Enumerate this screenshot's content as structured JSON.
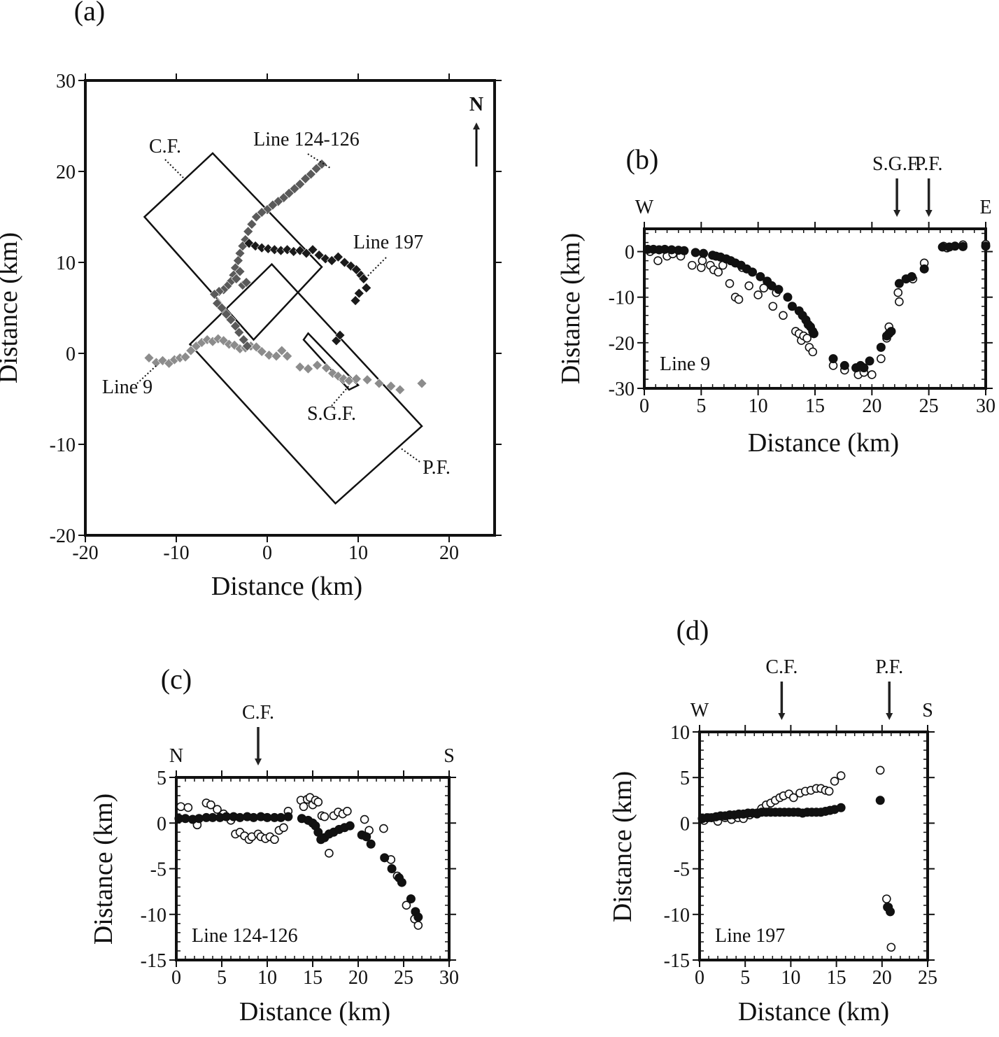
{
  "chart_data": [
    {
      "panel": "(a)",
      "type": "scatter",
      "xlabel": "Distance (km)",
      "ylabel": "Distance (km)",
      "xlim": [
        -20,
        25
      ],
      "ylim": [
        -20,
        30
      ],
      "xticks": [
        "-20",
        "-10",
        "0",
        "10",
        "20"
      ],
      "yticks": [
        "30",
        "20",
        "10",
        "0",
        "-10",
        "-20"
      ],
      "north_label": "N",
      "boxes": [
        {
          "label": "C.F.",
          "corners": [
            [
              -6,
              22
            ],
            [
              6,
              9.5
            ],
            [
              -1.5,
              1.5
            ],
            [
              -13.5,
              15
            ]
          ]
        },
        {
          "label": "P.F.",
          "corners": [
            [
              0.5,
              9.8
            ],
            [
              17,
              -8
            ],
            [
              7.5,
              -16.5
            ],
            [
              -8.5,
              1
            ]
          ]
        },
        {
          "label": "S.G.F.",
          "corners": [
            [
              4.5,
              2.2
            ],
            [
              10,
              -3.5
            ],
            [
              9,
              -4
            ],
            [
              4,
              1.5
            ]
          ]
        }
      ],
      "series": [
        {
          "name": "Line 9",
          "color": "#8c8c8c",
          "x": [
            -13,
            -12.2,
            -11.5,
            -10.8,
            -10.2,
            -9.6,
            -9,
            -8.4,
            -7.8,
            -7.2,
            -6.6,
            -6,
            -5.4,
            -4.8,
            -4.2,
            -3.6,
            -3,
            -2.4,
            -1.8,
            -1.2,
            -0.6,
            0.2,
            1,
            1.6,
            2.2,
            3.6,
            4.5,
            5.5,
            6.5,
            7.2,
            7.8,
            8.4,
            9,
            9.8,
            11,
            12.3,
            13.6,
            14.6,
            17
          ],
          "y": [
            -0.5,
            -1,
            -0.8,
            -1.1,
            -0.7,
            -0.5,
            -0.4,
            0.3,
            0.8,
            1.2,
            1.5,
            1.3,
            1.6,
            1.4,
            1.0,
            0.9,
            0.5,
            0.6,
            0.8,
            0.7,
            0.2,
            -0.2,
            -0.3,
            0.3,
            -0.3,
            -1.5,
            -1.7,
            -1.3,
            -1.6,
            -2.2,
            -2.5,
            -2.8,
            -3.0,
            -2.8,
            -2.9,
            -3.3,
            -3.6,
            -4.0,
            -3.3
          ]
        },
        {
          "name": "Line 124-126",
          "color": "#5a5a5a",
          "x": [
            6,
            5.4,
            4.8,
            4.2,
            3.6,
            3.0,
            2.4,
            1.8,
            1.2,
            0.6,
            0,
            -0.6,
            -1.2,
            -1.7,
            -2.1,
            -2.4,
            -2.7,
            -3.0,
            -3.2,
            -3.5,
            -3.7,
            -4.0,
            -4.4,
            -4.8,
            -5.3,
            -5.8,
            -5.5,
            -5.0,
            -4.5,
            -4.0,
            -3.5,
            -3.1,
            -2.6,
            -2.2,
            -2.7,
            -2.3,
            -3.0,
            -3.4
          ],
          "y": [
            20.8,
            20.3,
            19.7,
            19.2,
            18.6,
            18.1,
            17.6,
            17.1,
            16.7,
            16.3,
            15.8,
            15.5,
            15.0,
            14.2,
            13.4,
            12.5,
            11.8,
            11.0,
            10.2,
            9.4,
            8.6,
            7.9,
            7.4,
            7.0,
            6.8,
            6.5,
            5.5,
            5.0,
            4.3,
            3.7,
            3.0,
            2.3,
            1.5,
            0.8,
            7.5,
            7.8,
            9.0,
            8.2
          ]
        },
        {
          "name": "Line 197",
          "color": "#1a1a1a",
          "x": [
            -2.0,
            -1.3,
            -0.6,
            0.1,
            0.8,
            1.5,
            2.2,
            2.9,
            3.6,
            4.3,
            5.0,
            5.7,
            6.4,
            7.1,
            7.8,
            8.5,
            9.2,
            9.8,
            10.3,
            10.6,
            10.9,
            10.1,
            9.7,
            7.6,
            8.0
          ],
          "y": [
            12.1,
            11.8,
            11.6,
            11.5,
            11.4,
            11.3,
            11.4,
            11.2,
            11.3,
            11.0,
            11.4,
            10.8,
            10.4,
            10.2,
            10.6,
            10.0,
            9.6,
            9.2,
            8.6,
            8.2,
            7.2,
            6.6,
            5.8,
            1.4,
            2.0
          ]
        }
      ],
      "annotations": [
        "C.F.",
        "Line 124-126",
        "Line 197",
        "Line 9",
        "S.G.F.",
        "P.F."
      ]
    },
    {
      "panel": "(b)",
      "type": "scatter",
      "inner_label": "Line 9",
      "xlabel": "Distance (km)",
      "ylabel": "Distance (km)",
      "xlim": [
        0,
        30
      ],
      "ylim": [
        -30,
        5
      ],
      "xticks": [
        "0",
        "5",
        "10",
        "15",
        "20",
        "25",
        "30"
      ],
      "yticks": [
        "0",
        "-10",
        "-20",
        "-30"
      ],
      "direction_labels": [
        "W",
        "E"
      ],
      "fault_markers": [
        {
          "label": "S.G.F.",
          "x": 22.2
        },
        {
          "label": "P.F.",
          "x": 25
        }
      ],
      "series": [
        {
          "marker": "filled",
          "x": [
            0.3,
            0.8,
            1.3,
            1.8,
            2.4,
            3.0,
            3.5,
            4.5,
            5.2,
            6.0,
            6.3,
            6.7,
            7.2,
            7.6,
            8.0,
            8.5,
            9.0,
            9.5,
            10.2,
            10.8,
            11.2,
            11.8,
            12.6,
            13.0,
            13.6,
            13.9,
            14.2,
            14.4,
            14.6,
            14.8,
            14.9,
            16.6,
            17.6,
            18.6,
            19.0,
            19.3,
            19.8,
            20.8,
            21.3,
            21.5,
            21.7,
            22.4,
            23.0,
            23.5,
            24.6,
            26.2,
            26.8,
            27.3,
            28.0,
            30.0
          ],
          "y": [
            0.5,
            0.5,
            0.4,
            0.5,
            0.4,
            0.3,
            0.2,
            -0.2,
            -0.4,
            -0.8,
            -1.0,
            -1.2,
            -1.6,
            -2.0,
            -2.5,
            -3.0,
            -3.8,
            -4.5,
            -5.5,
            -6.5,
            -7.5,
            -8.3,
            -10.0,
            -12.0,
            -13.0,
            -14.0,
            -15.0,
            -16.0,
            -16.5,
            -17.5,
            -18.0,
            -23.5,
            -25.0,
            -25.5,
            -25.0,
            -25.5,
            -24.0,
            -21.0,
            -18.5,
            -18.0,
            -17.5,
            -7.0,
            -6.0,
            -5.5,
            -3.8,
            1.0,
            1.0,
            1.2,
            1.1,
            1.2
          ]
        },
        {
          "marker": "open",
          "x": [
            0.5,
            1.2,
            2.0,
            2.5,
            3.2,
            4.2,
            5.0,
            5.1,
            5.8,
            6.1,
            6.5,
            6.9,
            7.5,
            8.0,
            8.3,
            8.6,
            9.2,
            10.0,
            10.5,
            11.3,
            11.6,
            12.2,
            13.0,
            13.3,
            13.6,
            13.8,
            14.0,
            14.3,
            14.5,
            14.8,
            16.6,
            17.6,
            18.8,
            19.3,
            20.0,
            20.8,
            21.3,
            21.5,
            22.3,
            22.4,
            23.6,
            24.6,
            26.3,
            26.6,
            28.0,
            30.0
          ],
          "y": [
            0,
            -2.0,
            -1.0,
            -0.5,
            -1.0,
            -3.0,
            -3.5,
            -2.0,
            -3.0,
            -4.0,
            -4.5,
            -3.0,
            -7.0,
            -10.0,
            -10.5,
            -3.5,
            -7.5,
            -9.5,
            -8.0,
            -12.0,
            -9.0,
            -14.0,
            -12.0,
            -17.5,
            -18.0,
            -19.5,
            -18.5,
            -19.0,
            -21.0,
            -22.0,
            -25.0,
            -26.0,
            -27.0,
            -26.5,
            -27.0,
            -23.5,
            -19.0,
            -16.5,
            -9.0,
            -11.0,
            -6.0,
            -2.5,
            1.2,
            0.8,
            1.5,
            1.6
          ]
        }
      ]
    },
    {
      "panel": "(c)",
      "type": "scatter",
      "inner_label": "Line 124-126",
      "xlabel": "Distance (km)",
      "ylabel": "Distance (km)",
      "xlim": [
        0,
        30
      ],
      "ylim": [
        -15,
        5
      ],
      "xticks": [
        "0",
        "5",
        "10",
        "15",
        "20",
        "25",
        "30"
      ],
      "yticks": [
        "5",
        "0",
        "-5",
        "-10",
        "-15"
      ],
      "direction_labels": [
        "N",
        "S"
      ],
      "fault_markers": [
        {
          "label": "C.F.",
          "x": 9
        }
      ],
      "series": [
        {
          "marker": "filled",
          "x": [
            0.3,
            1.0,
            1.8,
            2.5,
            3.3,
            4.0,
            4.8,
            5.5,
            6.3,
            7.0,
            7.8,
            8.5,
            9.3,
            10.0,
            10.8,
            11.5,
            12.3,
            13.8,
            14.5,
            15.0,
            15.3,
            15.6,
            15.9,
            16.3,
            16.8,
            17.3,
            17.9,
            18.5,
            19.1,
            20.4,
            20.9,
            21.4,
            22.9,
            23.7,
            24.5,
            24.8,
            25.8,
            26.3,
            26.6
          ],
          "y": [
            0.5,
            0.5,
            0.4,
            0.5,
            0.6,
            0.6,
            0.6,
            0.7,
            0.7,
            0.6,
            0.7,
            0.6,
            0.7,
            0.6,
            0.6,
            0.6,
            0.7,
            0.5,
            0.3,
            0.0,
            -0.3,
            -1.0,
            -1.8,
            -1.6,
            -1.2,
            -1.0,
            -0.7,
            -0.5,
            -0.3,
            -1.3,
            -1.5,
            -2.3,
            -3.8,
            -5.0,
            -6.0,
            -6.5,
            -8.3,
            -9.7,
            -10.3
          ]
        },
        {
          "marker": "open",
          "x": [
            0.5,
            1.3,
            2.3,
            3.3,
            3.8,
            4.5,
            5.2,
            6.0,
            6.5,
            7.0,
            7.5,
            8.0,
            8.3,
            9.0,
            9.3,
            9.8,
            10.3,
            10.8,
            11.3,
            11.8,
            12.3,
            13.7,
            14.0,
            14.4,
            14.7,
            15.0,
            15.3,
            15.6,
            16.0,
            16.3,
            16.8,
            17.3,
            17.8,
            18.3,
            18.8,
            20.7,
            21.2,
            22.8,
            23.6,
            24.3,
            25.3,
            26.2,
            26.6
          ],
          "y": [
            1.8,
            1.7,
            -0.2,
            2.2,
            2.0,
            1.5,
            1.0,
            0.3,
            -1.2,
            -1.0,
            -1.4,
            -1.8,
            -1.5,
            -1.2,
            -1.5,
            -1.7,
            -1.5,
            -1.8,
            -0.8,
            -0.5,
            1.3,
            2.5,
            1.8,
            2.6,
            2.8,
            2.0,
            2.5,
            2.3,
            0.8,
            0.7,
            -3.3,
            0.8,
            1.2,
            1.0,
            1.3,
            0.4,
            -0.8,
            -0.6,
            -4.0,
            -5.8,
            -9.0,
            -10.5,
            -11.2
          ]
        }
      ]
    },
    {
      "panel": "(d)",
      "type": "scatter",
      "inner_label": "Line 197",
      "xlabel": "Distance (km)",
      "ylabel": "Distance (km)",
      "xlim": [
        0,
        25
      ],
      "ylim": [
        -15,
        10
      ],
      "xticks": [
        "0",
        "5",
        "10",
        "15",
        "20",
        "25"
      ],
      "yticks": [
        "10",
        "5",
        "0",
        "-5",
        "-10",
        "-15"
      ],
      "direction_labels": [
        "W",
        "S"
      ],
      "fault_markers": [
        {
          "label": "C.F.",
          "x": 9
        },
        {
          "label": "P.F.",
          "x": 20.8
        }
      ],
      "series": [
        {
          "marker": "filled",
          "x": [
            0.3,
            0.8,
            1.3,
            1.8,
            2.3,
            2.8,
            3.3,
            3.8,
            4.3,
            4.8,
            5.3,
            5.8,
            6.3,
            6.8,
            7.3,
            7.8,
            8.3,
            8.8,
            9.3,
            9.8,
            10.3,
            10.8,
            11.3,
            11.8,
            12.3,
            12.8,
            13.3,
            13.8,
            14.3,
            14.8,
            15.5,
            19.8,
            20.6,
            20.9
          ],
          "y": [
            0.5,
            0.6,
            0.6,
            0.7,
            0.8,
            0.8,
            0.9,
            0.9,
            1.0,
            1.0,
            1.1,
            1.1,
            1.1,
            1.2,
            1.2,
            1.2,
            1.2,
            1.2,
            1.2,
            1.2,
            1.2,
            1.2,
            1.1,
            1.2,
            1.2,
            1.2,
            1.2,
            1.3,
            1.4,
            1.5,
            1.7,
            2.5,
            -9.2,
            -9.7
          ]
        },
        {
          "marker": "open",
          "x": [
            0.5,
            1.0,
            2.0,
            2.8,
            3.5,
            4.2,
            4.8,
            5.5,
            6.3,
            6.8,
            7.3,
            7.8,
            8.3,
            8.8,
            9.2,
            9.8,
            10.3,
            11.0,
            11.6,
            12.2,
            12.8,
            13.3,
            13.8,
            14.2,
            14.8,
            15.5,
            19.8,
            20.5,
            20.7,
            21.0
          ],
          "y": [
            0.3,
            0.6,
            0.2,
            0.6,
            0.4,
            0.6,
            0.5,
            0.9,
            1.0,
            1.6,
            2.0,
            2.2,
            2.5,
            2.8,
            3.0,
            3.2,
            2.8,
            3.3,
            3.5,
            3.6,
            3.8,
            3.8,
            3.6,
            3.5,
            4.6,
            5.2,
            5.8,
            -8.3,
            -9.2,
            -13.6
          ]
        }
      ]
    }
  ]
}
